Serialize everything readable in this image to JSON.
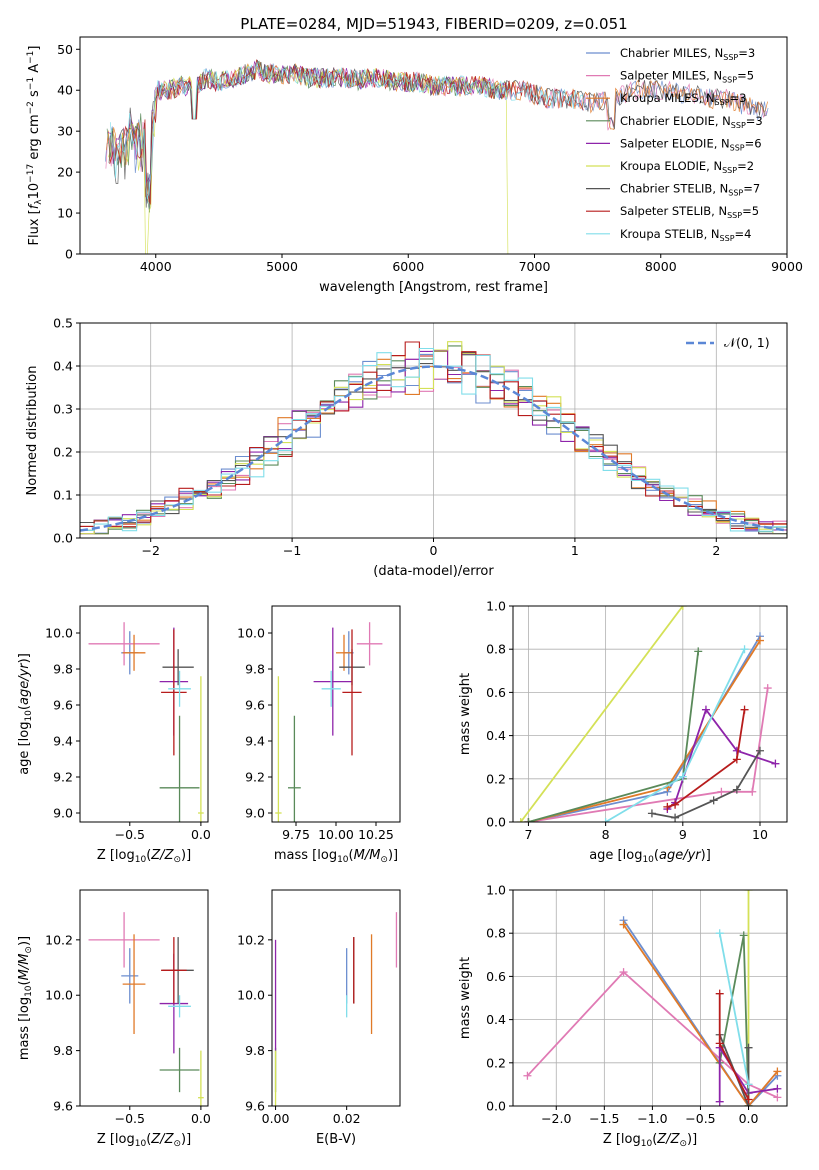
{
  "figure": {
    "title": "PLATE=0284, MJD=51943, FIBERID=0209, z=0.051"
  },
  "legend": {
    "spectrum_entries": [
      {
        "label": "Chabrier MILES, N",
        "sub": "SSP",
        "tail": "=3"
      },
      {
        "label": "Salpeter MILES, N",
        "sub": "SSP",
        "tail": "=5"
      },
      {
        "label": "Kroupa MILES, N",
        "sub": "SSP",
        "tail": "=3"
      },
      {
        "label": "Chabrier ELODIE, N",
        "sub": "SSP",
        "tail": "=3"
      },
      {
        "label": "Salpeter ELODIE, N",
        "sub": "SSP",
        "tail": "=6"
      },
      {
        "label": "Kroupa ELODIE, N",
        "sub": "SSP",
        "tail": "=2"
      },
      {
        "label": "Chabrier STELIB, N",
        "sub": "SSP",
        "tail": "=7"
      },
      {
        "label": "Salpeter STELIB, N",
        "sub": "SSP",
        "tail": "=5"
      },
      {
        "label": "Kroupa STELIB, N",
        "sub": "SSP",
        "tail": "=4"
      }
    ],
    "normal_label": "𝒩(0, 1)"
  },
  "chart_data": [
    {
      "id": "spectrum",
      "type": "line",
      "xlabel": "wavelength [Angstrom, rest frame]",
      "ylabel": "Flux [f_λ 10^-17 erg cm^-2 s^-1 A^-1]",
      "xlim": [
        3400,
        9000
      ],
      "ylim": [
        0,
        53
      ],
      "xticks": [
        4000,
        5000,
        6000,
        7000,
        8000,
        9000
      ],
      "yticks": [
        0,
        10,
        20,
        30,
        40,
        50
      ],
      "continuum": {
        "x": [
          3600,
          3650,
          3700,
          3750,
          3800,
          3850,
          3900,
          3950,
          4000,
          4100,
          4200,
          4300,
          4400,
          4500,
          4600,
          4700,
          4800,
          4900,
          5000,
          5100,
          5200,
          5300,
          5400,
          5500,
          5600,
          5700,
          5800,
          5900,
          6000,
          6100,
          6200,
          6300,
          6400,
          6500,
          6600,
          6700,
          6800,
          6900,
          7000,
          7100,
          7200,
          7300,
          7400,
          7500,
          7600,
          7700,
          7800,
          7900,
          8000,
          8100,
          8200,
          8300,
          8400,
          8500,
          8600,
          8700,
          8800
        ],
        "y": [
          29,
          31,
          28,
          30,
          34,
          30,
          33,
          31,
          40,
          40,
          41,
          41,
          43,
          42,
          43,
          44,
          45,
          44,
          44,
          44,
          43,
          43,
          43,
          43,
          42.5,
          43,
          43,
          42,
          42,
          42,
          41,
          41,
          41,
          41,
          41,
          40,
          40,
          40,
          39,
          38,
          38,
          38,
          37,
          37,
          38,
          39,
          40,
          40,
          40,
          40,
          39,
          39,
          38,
          38,
          37,
          36,
          35
        ]
      },
      "series": [
        {
          "name": "Chabrier MILES",
          "color": "#6c8ecf",
          "x_end": 8850
        },
        {
          "name": "Salpeter MILES",
          "color": "#e07ab4",
          "x_end": 8850
        },
        {
          "name": "Kroupa MILES",
          "color": "#e07a28",
          "x_end": 8850
        },
        {
          "name": "Chabrier ELODIE",
          "color": "#5a8a5a",
          "x_end": 6800
        },
        {
          "name": "Salpeter ELODIE",
          "color": "#8e24aa",
          "x_end": 6800
        },
        {
          "name": "Kroupa ELODIE",
          "color": "#d4e157",
          "x_end": 6800
        },
        {
          "name": "Chabrier STELIB",
          "color": "#555555",
          "x_end": 8850
        },
        {
          "name": "Salpeter STELIB",
          "color": "#b71c1c",
          "x_end": 7400
        },
        {
          "name": "Kroupa STELIB",
          "color": "#80deea",
          "x_end": 7400
        }
      ]
    },
    {
      "id": "residuals",
      "type": "histogram",
      "xlabel": "(data-model)/error",
      "ylabel": "Normed distribution",
      "xlim": [
        -2.5,
        2.5
      ],
      "ylim": [
        0,
        0.5
      ],
      "xticks": [
        -2,
        -1,
        0,
        1,
        2
      ],
      "yticks": [
        0.0,
        0.1,
        0.2,
        0.3,
        0.4,
        0.5
      ],
      "bin_start": -2.5,
      "bin_width": 0.1,
      "normal": {
        "mean": 0,
        "sigma": 1
      },
      "series": [
        {
          "name": "Chabrier MILES",
          "color": "#6c8ecf",
          "seed": 1
        },
        {
          "name": "Salpeter MILES",
          "color": "#e07ab4",
          "seed": 2
        },
        {
          "name": "Kroupa MILES",
          "color": "#e07a28",
          "seed": 3
        },
        {
          "name": "Chabrier ELODIE",
          "color": "#5a8a5a",
          "seed": 4
        },
        {
          "name": "Salpeter ELODIE",
          "color": "#8e24aa",
          "seed": 5
        },
        {
          "name": "Kroupa ELODIE",
          "color": "#d4e157",
          "seed": 6
        },
        {
          "name": "Chabrier STELIB",
          "color": "#555555",
          "seed": 7
        },
        {
          "name": "Salpeter STELIB",
          "color": "#b71c1c",
          "seed": 8
        },
        {
          "name": "Kroupa STELIB",
          "color": "#80deea",
          "seed": 9
        }
      ]
    },
    {
      "id": "age-vs-Z",
      "type": "errorbar",
      "xlabel": "Z [log10(Z/Z⊙)]",
      "ylabel": "age [log10(age/yr)]",
      "xlim": [
        -0.85,
        0.05
      ],
      "ylim": [
        8.95,
        10.15
      ],
      "xticks": [
        -0.5,
        0.0
      ],
      "xticklabels": [
        "−0.5",
        "0.0"
      ],
      "yticks": [
        9.0,
        9.2,
        9.4,
        9.6,
        9.8,
        10.0
      ],
      "points": [
        {
          "color": "#6c8ecf",
          "x": -0.5,
          "y": 9.89,
          "xerr": 0.06,
          "yerr": 0.12
        },
        {
          "color": "#e07ab4",
          "x": -0.54,
          "y": 9.94,
          "xerr": 0.25,
          "yerr": 0.12
        },
        {
          "color": "#e07a28",
          "x": -0.47,
          "y": 9.89,
          "xerr": 0.08,
          "yerr": 0.1
        },
        {
          "color": "#5a8a5a",
          "x": -0.15,
          "y": 9.14,
          "xerr": 0.14,
          "yerr": 0.4
        },
        {
          "color": "#8e24aa",
          "x": -0.19,
          "y": 9.73,
          "xerr": 0.1,
          "yerr": 0.3
        },
        {
          "color": "#d4e157",
          "x": 0.0,
          "y": 9.0,
          "xerr": 0.02,
          "yerr": 0.76
        },
        {
          "color": "#555555",
          "x": -0.16,
          "y": 9.81,
          "xerr": 0.11,
          "yerr": 0.1
        },
        {
          "color": "#b71c1c",
          "x": -0.19,
          "y": 9.67,
          "xerr": 0.09,
          "yerr": 0.35
        },
        {
          "color": "#80deea",
          "x": -0.15,
          "y": 9.69,
          "xerr": 0.08,
          "yerr": 0.1
        }
      ]
    },
    {
      "id": "age-vs-mass",
      "type": "errorbar",
      "xlabel": "mass [log10(M/M⊙)]",
      "ylabel": "",
      "xlim": [
        9.6,
        10.4
      ],
      "ylim": [
        8.95,
        10.15
      ],
      "xticks": [
        9.75,
        10.0,
        10.25
      ],
      "xticklabels": [
        "9.75",
        "10.00",
        "10.25"
      ],
      "yticks": [
        9.0,
        9.2,
        9.4,
        9.6,
        9.8,
        10.0
      ],
      "points": [
        {
          "color": "#6c8ecf",
          "x": 10.08,
          "y": 9.89,
          "xerr": 0.03,
          "yerr": 0.12
        },
        {
          "color": "#e07ab4",
          "x": 10.21,
          "y": 9.94,
          "xerr": 0.08,
          "yerr": 0.12
        },
        {
          "color": "#e07a28",
          "x": 10.05,
          "y": 9.89,
          "xerr": 0.05,
          "yerr": 0.1
        },
        {
          "color": "#5a8a5a",
          "x": 9.74,
          "y": 9.14,
          "xerr": 0.04,
          "yerr": 0.4
        },
        {
          "color": "#8e24aa",
          "x": 9.98,
          "y": 9.73,
          "xerr": 0.12,
          "yerr": 0.3
        },
        {
          "color": "#d4e157",
          "x": 9.64,
          "y": 9.0,
          "xerr": 0.02,
          "yerr": 0.76
        },
        {
          "color": "#555555",
          "x": 10.1,
          "y": 9.81,
          "xerr": 0.08,
          "yerr": 0.1
        },
        {
          "color": "#b71c1c",
          "x": 10.1,
          "y": 9.67,
          "xerr": 0.06,
          "yerr": 0.35
        },
        {
          "color": "#80deea",
          "x": 9.97,
          "y": 9.69,
          "xerr": 0.06,
          "yerr": 0.1
        }
      ]
    },
    {
      "id": "weight-vs-age",
      "type": "line",
      "xlabel": "age [log10(age/yr)]",
      "ylabel": "mass weight",
      "xlim": [
        6.8,
        10.35
      ],
      "ylim": [
        0,
        1.0
      ],
      "xticks": [
        7,
        8,
        9,
        10
      ],
      "yticks": [
        0.0,
        0.2,
        0.4,
        0.6,
        0.8,
        1.0
      ],
      "series": [
        {
          "color": "#6c8ecf",
          "x": [
            7.0,
            8.8,
            10.0
          ],
          "y": [
            0.0,
            0.14,
            0.86
          ]
        },
        {
          "color": "#e07ab4",
          "x": [
            7.0,
            9.5,
            9.9,
            10.1
          ],
          "y": [
            0.0,
            0.14,
            0.14,
            0.62
          ]
        },
        {
          "color": "#e07a28",
          "x": [
            7.0,
            8.8,
            10.0
          ],
          "y": [
            0.0,
            0.16,
            0.84
          ]
        },
        {
          "color": "#5a8a5a",
          "x": [
            7.0,
            9.0,
            9.2
          ],
          "y": [
            0.0,
            0.2,
            0.79
          ]
        },
        {
          "color": "#8e24aa",
          "x": [
            8.8,
            8.9,
            9.3,
            9.7,
            10.2
          ],
          "y": [
            0.06,
            0.09,
            0.52,
            0.33,
            0.27
          ]
        },
        {
          "color": "#d4e157",
          "x": [
            6.9,
            9.0
          ],
          "y": [
            0.0,
            1.0
          ]
        },
        {
          "color": "#555555",
          "x": [
            8.6,
            8.9,
            9.4,
            9.7,
            10.0
          ],
          "y": [
            0.04,
            0.02,
            0.1,
            0.15,
            0.33
          ]
        },
        {
          "color": "#b71c1c",
          "x": [
            8.8,
            8.9,
            9.7,
            9.8
          ],
          "y": [
            0.07,
            0.08,
            0.29,
            0.52
          ]
        },
        {
          "color": "#80deea",
          "x": [
            8.0,
            9.0,
            9.8
          ],
          "y": [
            0.0,
            0.21,
            0.8
          ]
        }
      ]
    },
    {
      "id": "mass-vs-Z",
      "type": "errorbar",
      "xlabel": "Z [log10(Z/Z⊙)]",
      "ylabel": "mass [log10(M/M⊙)]",
      "xlim": [
        -0.85,
        0.05
      ],
      "ylim": [
        9.6,
        10.38
      ],
      "xticks": [
        -0.5,
        0.0
      ],
      "xticklabels": [
        "−0.5",
        "0.0"
      ],
      "yticks": [
        9.6,
        9.8,
        10.0,
        10.2
      ],
      "points": [
        {
          "color": "#6c8ecf",
          "x": -0.5,
          "y": 10.07,
          "xerr": 0.06,
          "yerr": 0.1
        },
        {
          "color": "#e07ab4",
          "x": -0.54,
          "y": 10.2,
          "xerr": 0.25,
          "yerr": 0.1
        },
        {
          "color": "#e07a28",
          "x": -0.47,
          "y": 10.04,
          "xerr": 0.08,
          "yerr": 0.18
        },
        {
          "color": "#5a8a5a",
          "x": -0.15,
          "y": 9.73,
          "xerr": 0.14,
          "yerr": 0.08
        },
        {
          "color": "#8e24aa",
          "x": -0.19,
          "y": 9.97,
          "xerr": 0.1,
          "yerr": 0.18
        },
        {
          "color": "#d4e157",
          "x": 0.0,
          "y": 9.63,
          "xerr": 0.02,
          "yerr": 0.17
        },
        {
          "color": "#555555",
          "x": -0.16,
          "y": 10.09,
          "xerr": 0.11,
          "yerr": 0.12
        },
        {
          "color": "#b71c1c",
          "x": -0.19,
          "y": 10.09,
          "xerr": 0.09,
          "yerr": 0.12
        },
        {
          "color": "#80deea",
          "x": -0.15,
          "y": 9.96,
          "xerr": 0.08,
          "yerr": 0.04
        }
      ]
    },
    {
      "id": "mass-vs-ebv",
      "type": "errorbar",
      "xlabel": "E(B-V)",
      "ylabel": "",
      "xlim": [
        -0.001,
        0.035
      ],
      "ylim": [
        9.6,
        10.38
      ],
      "xticks": [
        0.0,
        0.02
      ],
      "xticklabels": [
        "0.00",
        "0.02"
      ],
      "yticks": [
        9.6,
        9.8,
        10.0,
        10.2
      ],
      "points": [
        {
          "color": "#6c8ecf",
          "x": 0.02,
          "y": 10.07,
          "xerr": 0.0,
          "yerr": 0.1
        },
        {
          "color": "#e07ab4",
          "x": 0.034,
          "y": 10.2,
          "xerr": 0.0,
          "yerr": 0.1
        },
        {
          "color": "#e07a28",
          "x": 0.027,
          "y": 10.04,
          "xerr": 0.0,
          "yerr": 0.18
        },
        {
          "color": "#5a8a5a",
          "x": 0.0,
          "y": 9.73,
          "xerr": 0.0,
          "yerr": 0.08
        },
        {
          "color": "#8e24aa",
          "x": 0.0,
          "y": 10.0,
          "xerr": 0.0,
          "yerr": 0.2
        },
        {
          "color": "#d4e157",
          "x": 0.0,
          "y": 9.68,
          "xerr": 0.0,
          "yerr": 0.12
        },
        {
          "color": "#555555",
          "x": 0.022,
          "y": 10.09,
          "xerr": 0.0,
          "yerr": 0.12
        },
        {
          "color": "#b71c1c",
          "x": 0.022,
          "y": 10.09,
          "xerr": 0.0,
          "yerr": 0.12
        },
        {
          "color": "#80deea",
          "x": 0.02,
          "y": 9.96,
          "xerr": 0.0,
          "yerr": 0.04
        }
      ]
    },
    {
      "id": "weight-vs-Z",
      "type": "line",
      "xlabel": "Z [log10(Z/Z⊙)]",
      "ylabel": "mass weight",
      "xlim": [
        -2.45,
        0.4
      ],
      "ylim": [
        0,
        1.0
      ],
      "xticks": [
        -2.0,
        -1.5,
        -1.0,
        -0.5,
        0.0
      ],
      "xticklabels": [
        "−2.0",
        "−1.5",
        "−1.0",
        "−0.5",
        "0.0"
      ],
      "yticks": [
        0.0,
        0.2,
        0.4,
        0.6,
        0.8,
        1.0
      ],
      "series": [
        {
          "color": "#6c8ecf",
          "x": [
            -1.3,
            0.0,
            0.3
          ],
          "y": [
            0.86,
            0.0,
            0.14
          ]
        },
        {
          "color": "#e07ab4",
          "x": [
            -2.3,
            -1.3,
            0.0,
            0.3
          ],
          "y": [
            0.14,
            0.62,
            0.1,
            0.04
          ]
        },
        {
          "color": "#e07a28",
          "x": [
            -1.3,
            0.0,
            0.3
          ],
          "y": [
            0.84,
            0.0,
            0.16
          ]
        },
        {
          "color": "#5a8a5a",
          "x": [
            -0.3,
            -0.05,
            0.0
          ],
          "y": [
            0.2,
            0.79,
            0.0
          ]
        },
        {
          "color": "#8e24aa",
          "x": [
            -0.3,
            -0.3,
            0.0,
            0.3
          ],
          "y": [
            0.02,
            0.27,
            0.06,
            0.08
          ]
        },
        {
          "color": "#d4e157",
          "x": [
            0.0,
            0.0
          ],
          "y": [
            0.0,
            1.0
          ]
        },
        {
          "color": "#555555",
          "x": [
            -0.3,
            0.0,
            0.0
          ],
          "y": [
            0.33,
            0.0,
            0.27
          ]
        },
        {
          "color": "#b71c1c",
          "x": [
            -0.3,
            -0.3,
            0.0
          ],
          "y": [
            0.52,
            0.29,
            0.03
          ]
        },
        {
          "color": "#80deea",
          "x": [
            -0.3,
            0.0
          ],
          "y": [
            0.8,
            0.1
          ]
        }
      ]
    }
  ]
}
